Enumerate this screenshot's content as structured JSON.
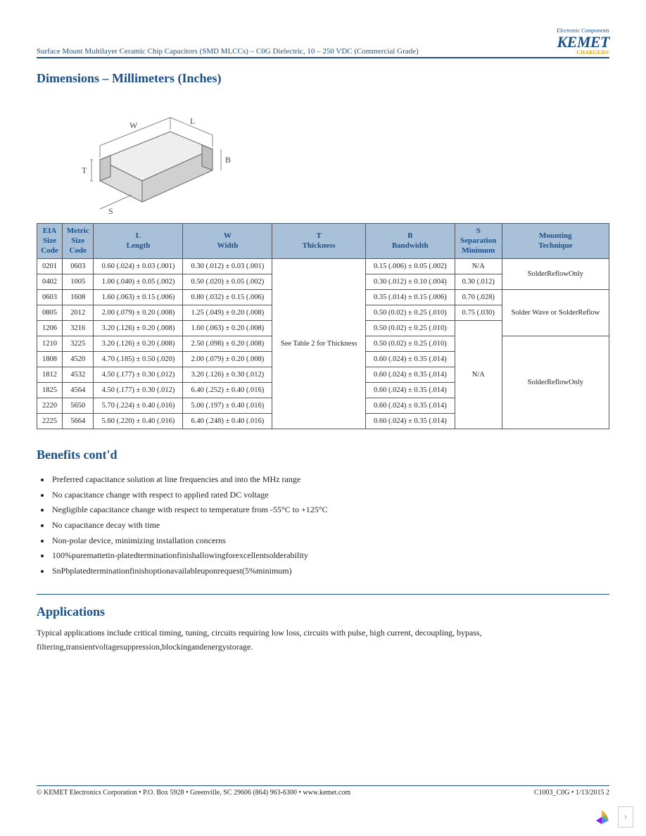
{
  "header": {
    "doc_title": "Surface Mount Multilayer Ceramic Chip Capacitors (SMD MLCCs) – C0G Dielectric, 10 – 250 VDC (Commercial Grade)",
    "logo_tag": "Electronic Components",
    "logo_main": "KEMET",
    "logo_sub": "CHARGED®"
  },
  "sections": {
    "dimensions_title": "Dimensions – Millimeters (Inches)",
    "benefits_title": "Benefits cont'd",
    "applications_title": "Applications"
  },
  "diagram": {
    "labels": {
      "W": "W",
      "L": "L",
      "T": "T",
      "B": "B",
      "S": "S"
    },
    "stroke": "#666666",
    "fill": "#e8e8e8"
  },
  "dim_table": {
    "header_bg": "#a8c0d8",
    "header_fg": "#1a4f8a",
    "border": "#555555",
    "columns": [
      "EIA\nSize\nCode",
      "Metric\nSize\nCode",
      "L\nLength",
      "W\nWidth",
      "T\nThickness",
      "B\nBandwidth",
      "S\nSeparation\nMinimum",
      "Mounting\nTechnique"
    ],
    "thickness_cell": "See Table 2 for Thickness",
    "rows": [
      {
        "eia": "0201",
        "metric": "0603",
        "L": "0.60 (.024) ± 0.03 (.001)",
        "W": "0.30 (.012) ± 0.03 (.001)",
        "B": "0.15 (.006) ± 0.05 (.002)",
        "S": "N/A",
        "mount": "SolderReflowOnly",
        "mount_span": 2
      },
      {
        "eia": "0402",
        "metric": "1005",
        "L": "1.00 (.040) ± 0.05 (.002)",
        "W": "0.50 (.020) ± 0.05 (.002)",
        "B": "0.30 (.012) ± 0.10 (.004)",
        "S": "0.30 (.012)"
      },
      {
        "eia": "0603",
        "metric": "1608",
        "L": "1.60 (.063) ± 0.15 (.006)",
        "W": "0.80 (.032) ± 0.15 (.006)",
        "B": "0.35 (.014) ± 0.15 (.006)",
        "S": "0.70 (.028)",
        "mount": "Solder Wave or SolderReflow",
        "mount_span": 3
      },
      {
        "eia": "0805",
        "metric": "2012",
        "L": "2.00 (.079) ± 0.20 (.008)",
        "W": "1.25 (.049) ± 0.20 (.008)",
        "B": "0.50 (0.02) ± 0.25 (.010)",
        "S": "0.75 (.030)"
      },
      {
        "eia": "1206",
        "metric": "3216",
        "L": "3.20 (.126) ± 0.20 (.008)",
        "W": "1.60 (.063) ± 0.20 (.008)",
        "B": "0.50 (0.02) ± 0.25 (.010)",
        "S": "N/A",
        "S_span": 7
      },
      {
        "eia": "1210",
        "metric": "3225",
        "L": "3.20 (.126) ± 0.20 (.008)",
        "W": "2.50 (.098) ± 0.20 (.008)",
        "B": "0.50 (0.02) ± 0.25 (.010)",
        "mount": "SolderReflowOnly",
        "mount_span": 6
      },
      {
        "eia": "1808",
        "metric": "4520",
        "L": "4.70 (.185) ± 0.50 (.020)",
        "W": "2.00 (.079) ± 0.20 (.008)",
        "B": "0.60 (.024) ± 0.35 (.014)"
      },
      {
        "eia": "1812",
        "metric": "4532",
        "L": "4.50 (.177) ± 0.30 (.012)",
        "W": "3.20 (.126) ± 0.30 (.012)",
        "B": "0.60 (.024) ± 0.35 (.014)"
      },
      {
        "eia": "1825",
        "metric": "4564",
        "L": "4.50 (.177) ± 0.30 (.012)",
        "W": "6.40 (.252) ± 0.40 (.016)",
        "B": "0.60 (.024) ± 0.35 (.014)"
      },
      {
        "eia": "2220",
        "metric": "5650",
        "L": "5.70 (.224) ± 0.40 (.016)",
        "W": "5.00 (.197) ± 0.40 (.016)",
        "B": "0.60 (.024) ± 0.35 (.014)"
      },
      {
        "eia": "2225",
        "metric": "5664",
        "L": "5.60 (.220) ± 0.40 (.016)",
        "W": "6.40 (.248) ± 0.40 (.016)",
        "B": "0.60 (.024) ± 0.35 (.014)"
      }
    ]
  },
  "benefits": [
    "Preferred capacitance solution at line frequencies and into the MHz range",
    "No capacitance change with respect to applied rated DC voltage",
    "Negligible capacitance change with respect to temperature from -55°C to +125°C",
    "No capacitance decay with time",
    "Non-polar device, minimizing installation concerns",
    "100%puremattetin-platedterminationfinishallowingforexcellentsolderability",
    "SnPbplatedterminationfinishoptionavailableuponrequest(5%minimum)"
  ],
  "applications_text": "Typical applications include critical timing, tuning, circuits requiring low loss, circuits with pulse, high current, decoupling, bypass, filtering,transientvoltagesuppression,blockingandenergystorage.",
  "footer": {
    "left": "© KEMET Electronics Corporation • P.O. Box 5928 • Greenville, SC 29606 (864) 963-6300 • www.kemet.com",
    "right": "C1003_C0G • 1/13/2015      2"
  }
}
